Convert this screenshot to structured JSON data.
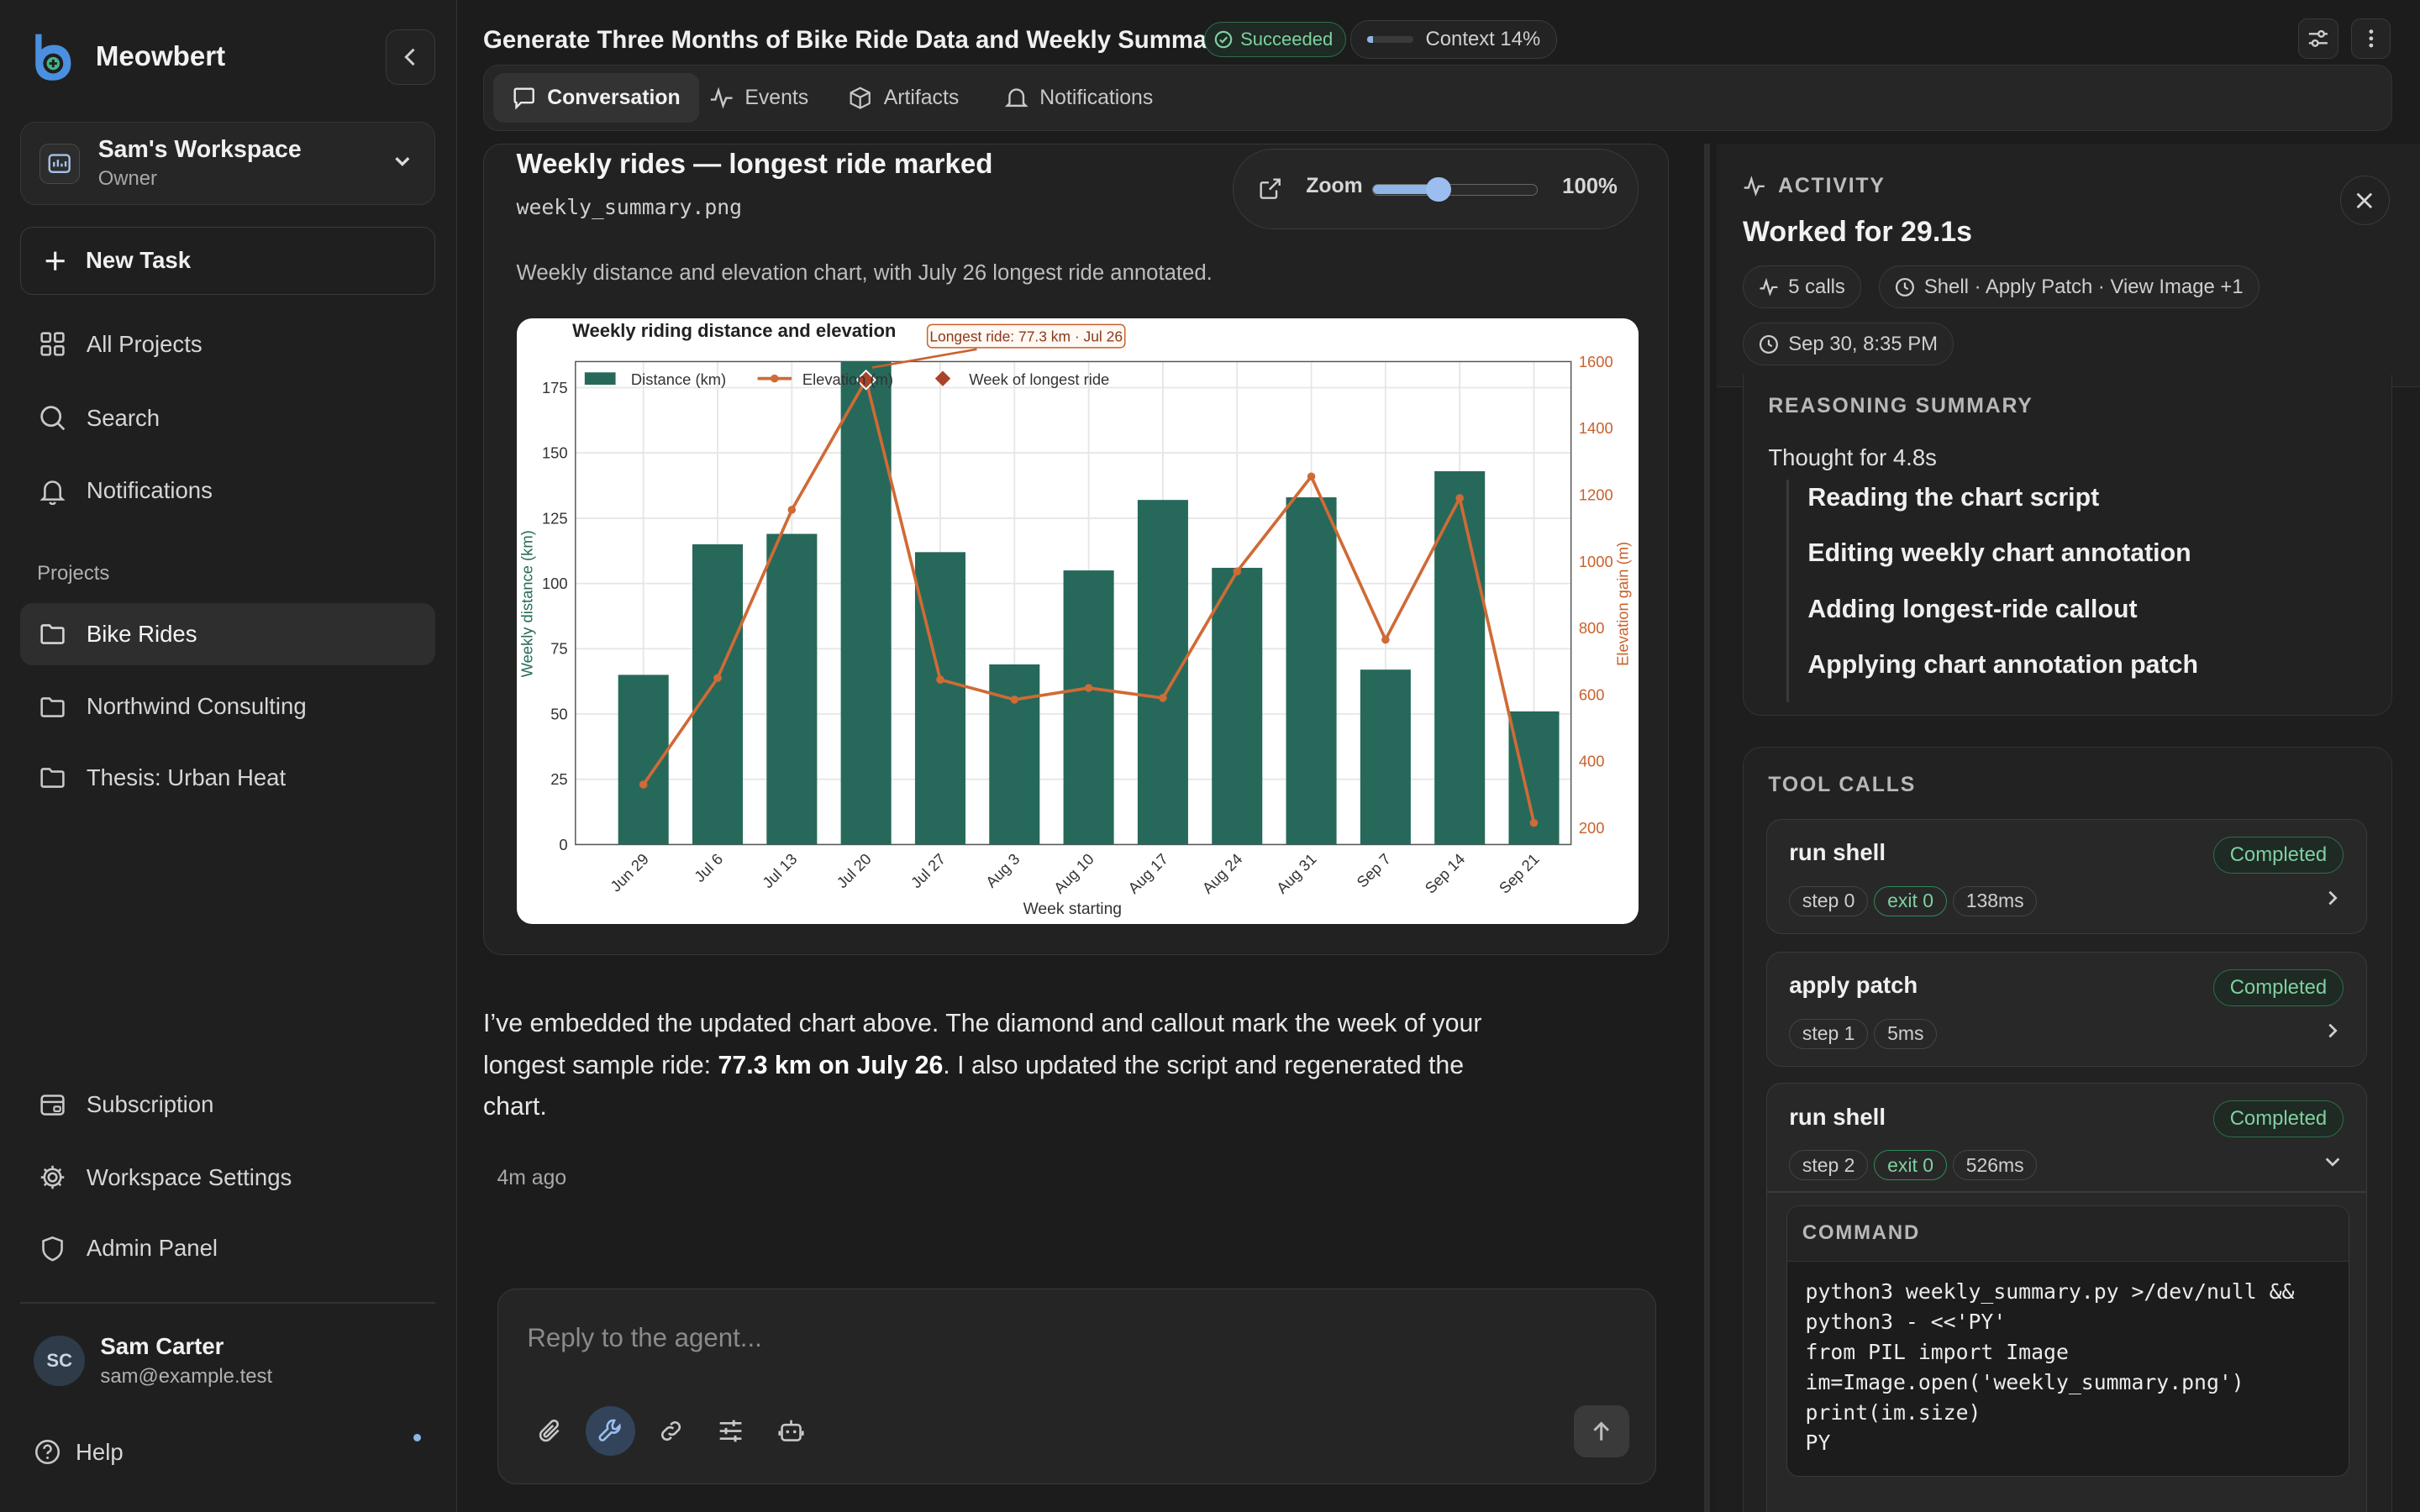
{
  "app": {
    "name": "Meowbert"
  },
  "workspace": {
    "name": "Sam's Workspace",
    "role": "Owner"
  },
  "sidebar": {
    "new_task": "New Task",
    "nav": [
      {
        "label": "All Projects",
        "icon": "grid-icon"
      },
      {
        "label": "Search",
        "icon": "search-icon"
      },
      {
        "label": "Notifications",
        "icon": "bell-icon"
      }
    ],
    "projects_label": "Projects",
    "projects": [
      {
        "label": "Bike Rides",
        "active": true
      },
      {
        "label": "Northwind Consulting"
      },
      {
        "label": "Thesis: Urban Heat"
      }
    ],
    "bottom": [
      {
        "label": "Subscription",
        "icon": "subscription-icon"
      },
      {
        "label": "Workspace Settings",
        "icon": "gear-icon"
      },
      {
        "label": "Admin Panel",
        "icon": "shield-icon"
      }
    ],
    "user": {
      "initials": "SC",
      "name": "Sam Carter",
      "email": "sam@example.test"
    },
    "help": "Help"
  },
  "header": {
    "title": "Generate Three Months of Bike Ride Data and Weekly Summary",
    "status": "Succeeded",
    "context": "Context 14%",
    "context_fraction": 0.14
  },
  "tabs": [
    {
      "label": "Conversation",
      "icon": "chat-icon",
      "active": true
    },
    {
      "label": "Events",
      "icon": "pulse-icon"
    },
    {
      "label": "Artifacts",
      "icon": "box-icon"
    },
    {
      "label": "Notifications",
      "icon": "bell-icon"
    }
  ],
  "artifact": {
    "title": "Weekly rides — longest ride marked",
    "file": "weekly_summary.png",
    "zoom_label": "Zoom",
    "zoom_value": "100%",
    "zoom_fraction": 0.4,
    "description": "Weekly distance and elevation chart, with July 26 longest ride annotated."
  },
  "chart_data": {
    "type": "bar",
    "title": "Weekly riding distance and elevation",
    "xlabel": "Week starting",
    "ylabel": "Weekly distance (km)",
    "y2label": "Elevation gain (m)",
    "categories": [
      "Jun 29",
      "Jul 6",
      "Jul 13",
      "Jul 20",
      "Jul 27",
      "Aug 3",
      "Aug 10",
      "Aug 17",
      "Aug 24",
      "Aug 31",
      "Sep 7",
      "Sep 14",
      "Sep 21"
    ],
    "ylim": [
      0,
      185
    ],
    "y2lim": [
      150,
      1600
    ],
    "yticks": [
      0,
      25,
      50,
      75,
      100,
      125,
      150,
      175
    ],
    "y2ticks": [
      200,
      400,
      600,
      800,
      1000,
      1200,
      1400,
      1600
    ],
    "series": [
      {
        "name": "Distance (km)",
        "axis": "left",
        "values": [
          65,
          115,
          119,
          190,
          112,
          69,
          105,
          132,
          106,
          133,
          67,
          143,
          51
        ],
        "color": "#26695a"
      },
      {
        "name": "Elevation (m)",
        "axis": "right",
        "values": [
          330,
          650,
          1155,
          1545,
          645,
          585,
          620,
          590,
          970,
          1255,
          765,
          1190,
          215
        ],
        "color": "#d06a36"
      }
    ],
    "legend_marker": "Week of longest ride",
    "annotation": "Longest ride: 77.3 km · Jul 26",
    "highlight_index": 3,
    "grid": true,
    "legend_position": "top-left"
  },
  "message": {
    "part1": "I’ve embedded the updated chart above. The diamond and callout mark the week of your longest sample ride: ",
    "bold": "77.3 km on July 26",
    "part2": ". I also updated the script and regenerated the chart.",
    "time": "4m ago"
  },
  "composer": {
    "placeholder": "Reply to the agent..."
  },
  "activity": {
    "label": "ACTIVITY",
    "title": "Worked for 29.1s",
    "calls_chip": "5 calls",
    "tools_chip": "Shell · Apply Patch · View Image +1",
    "date_chip": "Sep 30, 8:35 PM",
    "reasoning_title": "REASONING SUMMARY",
    "thought": "Thought for 4.8s",
    "steps": [
      "Reading the chart script",
      "Editing weekly chart annotation",
      "Adding longest-ride callout",
      "Applying chart annotation patch"
    ],
    "tool_calls_title": "TOOL CALLS",
    "calls": [
      {
        "name": "run shell",
        "status": "Completed",
        "step": "step 0",
        "exit": "exit 0",
        "time": "138ms"
      },
      {
        "name": "apply patch",
        "status": "Completed",
        "step": "step 1",
        "time": "5ms"
      },
      {
        "name": "run shell",
        "status": "Completed",
        "step": "step 2",
        "exit": "exit 0",
        "time": "526ms"
      }
    ],
    "command_label": "COMMAND",
    "command": "python3 weekly_summary.py >/dev/null &&\npython3 - <<'PY'\nfrom PIL import Image\nim=Image.open('weekly_summary.png')\nprint(im.size)\nPY"
  }
}
